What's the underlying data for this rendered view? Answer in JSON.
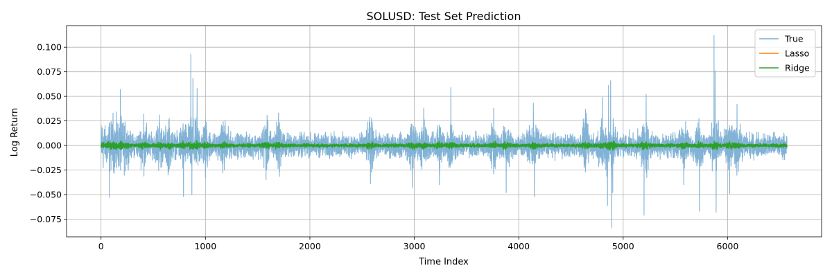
{
  "chart_data": {
    "type": "line",
    "title": "SOLUSD: Test Set Prediction",
    "xlabel": "Time Index",
    "ylabel": "Log Return",
    "xlim": [
      -330,
      6900
    ],
    "ylim": [
      -0.093,
      0.122
    ],
    "x_ticks": [
      0,
      1000,
      2000,
      3000,
      4000,
      5000,
      6000
    ],
    "x_tick_labels": [
      "0",
      "1000",
      "2000",
      "3000",
      "4000",
      "5000",
      "6000"
    ],
    "y_ticks": [
      -0.075,
      -0.05,
      -0.025,
      0.0,
      0.025,
      0.05,
      0.075,
      0.1
    ],
    "y_tick_labels": [
      "−0.075",
      "−0.050",
      "−0.025",
      "0.000",
      "0.025",
      "0.050",
      "0.075",
      "0.100"
    ],
    "grid": true,
    "legend_position": "top-right",
    "n_points": 6570,
    "series": [
      {
        "name": "True",
        "color": "#7bafd4",
        "typical_amplitude": 0.008,
        "extremes": [
          {
            "x": 10,
            "y": 0.018
          },
          {
            "x": 80,
            "y": -0.053
          },
          {
            "x": 115,
            "y": 0.033
          },
          {
            "x": 150,
            "y": -0.023
          },
          {
            "x": 185,
            "y": 0.057
          },
          {
            "x": 230,
            "y": 0.024
          },
          {
            "x": 410,
            "y": 0.032
          },
          {
            "x": 560,
            "y": 0.031
          },
          {
            "x": 650,
            "y": 0.026
          },
          {
            "x": 790,
            "y": -0.052
          },
          {
            "x": 860,
            "y": 0.093
          },
          {
            "x": 870,
            "y": -0.05
          },
          {
            "x": 880,
            "y": 0.068
          },
          {
            "x": 920,
            "y": 0.058
          },
          {
            "x": 1000,
            "y": -0.033
          },
          {
            "x": 1180,
            "y": -0.025
          },
          {
            "x": 1580,
            "y": -0.035
          },
          {
            "x": 1700,
            "y": 0.033
          },
          {
            "x": 2580,
            "y": -0.039
          },
          {
            "x": 2980,
            "y": -0.043
          },
          {
            "x": 3090,
            "y": 0.038
          },
          {
            "x": 3240,
            "y": -0.04
          },
          {
            "x": 3350,
            "y": 0.059
          },
          {
            "x": 3760,
            "y": 0.038
          },
          {
            "x": 3880,
            "y": -0.048
          },
          {
            "x": 4140,
            "y": 0.043
          },
          {
            "x": 4150,
            "y": -0.052
          },
          {
            "x": 4640,
            "y": 0.037
          },
          {
            "x": 4800,
            "y": 0.049
          },
          {
            "x": 4850,
            "y": -0.061
          },
          {
            "x": 4860,
            "y": 0.061
          },
          {
            "x": 4880,
            "y": 0.066
          },
          {
            "x": 4890,
            "y": -0.084
          },
          {
            "x": 4900,
            "y": -0.048
          },
          {
            "x": 5200,
            "y": -0.071
          },
          {
            "x": 5220,
            "y": 0.052
          },
          {
            "x": 5580,
            "y": -0.04
          },
          {
            "x": 5730,
            "y": -0.067
          },
          {
            "x": 5870,
            "y": 0.112
          },
          {
            "x": 5880,
            "y": 0.076
          },
          {
            "x": 5890,
            "y": -0.068
          },
          {
            "x": 6020,
            "y": -0.049
          },
          {
            "x": 6090,
            "y": 0.042
          }
        ]
      },
      {
        "name": "Lasso",
        "color": "#ff7f0e",
        "typical_amplitude": 0.0004
      },
      {
        "name": "Ridge",
        "color": "#2ca02c",
        "typical_amplitude": 0.0012
      }
    ]
  }
}
